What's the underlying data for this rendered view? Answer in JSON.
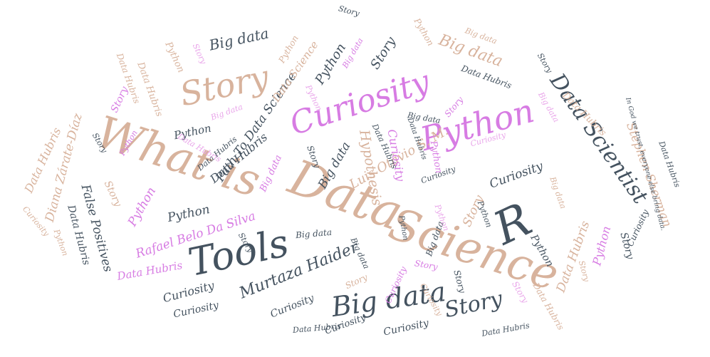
{
  "colors": {
    "tan": "#d8b39d",
    "slate": "#44525f",
    "violet": "#d77ce3",
    "pink": "#e9a6ea"
  },
  "words": [
    {
      "text": "What is",
      "color": "tan"
    },
    {
      "text": "Data",
      "color": "tan"
    },
    {
      "text": "Science",
      "color": "tan"
    },
    {
      "text": "Curiosity",
      "color": "violet"
    },
    {
      "text": "Python",
      "color": "violet"
    },
    {
      "text": "Story",
      "color": "tan"
    },
    {
      "text": "Tools",
      "color": "slate"
    },
    {
      "text": "R",
      "color": "slate"
    },
    {
      "text": "Data Scientist",
      "color": "slate"
    },
    {
      "text": "Big data",
      "color": "slate"
    },
    {
      "text": "Story",
      "color": "slate"
    },
    {
      "text": "Murtaza Haider",
      "color": "slate"
    },
    {
      "text": "Rafael Belo Da Silva",
      "color": "violet"
    },
    {
      "text": "Luis Otávio S. M.",
      "color": "tan"
    },
    {
      "text": "Stephen Sherman",
      "color": "tan"
    },
    {
      "text": "Diana Zárate-Díaz",
      "color": "tan"
    },
    {
      "text": "Path To Data Science",
      "color": "slate"
    },
    {
      "text": "Data Science",
      "color": "tan"
    },
    {
      "text": "Big data",
      "color": "slate"
    },
    {
      "text": "Big data",
      "color": "tan"
    },
    {
      "text": "Python",
      "color": "slate"
    },
    {
      "text": "Story",
      "color": "slate"
    },
    {
      "text": "Python",
      "color": "slate"
    },
    {
      "text": "Data Hubris",
      "color": "slate"
    },
    {
      "text": "Python",
      "color": "slate"
    },
    {
      "text": "Hypothesis",
      "color": "tan"
    },
    {
      "text": "Curiosity",
      "color": "violet"
    },
    {
      "text": "Big data",
      "color": "slate"
    },
    {
      "text": "Curiosity",
      "color": "slate"
    },
    {
      "text": "Story",
      "color": "tan"
    },
    {
      "text": "Python",
      "color": "violet"
    },
    {
      "text": "Python",
      "color": "slate"
    },
    {
      "text": "False Positives",
      "color": "slate"
    },
    {
      "text": "Data Hubris",
      "color": "slate"
    },
    {
      "text": "Data Hubris",
      "color": "violet"
    },
    {
      "text": "Curiosity",
      "color": "slate"
    },
    {
      "text": "Curiosity",
      "color": "slate"
    },
    {
      "text": "Curiosity",
      "color": "slate"
    },
    {
      "text": "Curiosity",
      "color": "slate"
    },
    {
      "text": "Data Hubris",
      "color": "tan"
    },
    {
      "text": "Data Hubris",
      "color": "tan"
    },
    {
      "text": "Python",
      "color": "violet"
    },
    {
      "text": "Story",
      "color": "slate"
    },
    {
      "text": "Story",
      "color": "slate"
    },
    {
      "text": "Data Hubris",
      "color": "slate"
    },
    {
      "text": "Big data",
      "color": "slate"
    },
    {
      "text": "Story",
      "color": "violet"
    },
    {
      "text": "Story",
      "color": "violet"
    },
    {
      "text": "Story",
      "color": "tan"
    },
    {
      "text": "Big data",
      "color": "violet"
    },
    {
      "text": "Python",
      "color": "tan"
    },
    {
      "text": "Big data",
      "color": "violet"
    },
    {
      "text": "Data Hubris",
      "color": "tan"
    },
    {
      "text": "Data Hubris",
      "color": "tan"
    },
    {
      "text": "Python",
      "color": "tan"
    },
    {
      "text": "Curiosity",
      "color": "violet"
    },
    {
      "text": "Big data",
      "color": "slate"
    },
    {
      "text": "Story",
      "color": "slate"
    },
    {
      "text": "Python",
      "color": "violet"
    },
    {
      "text": "Story",
      "color": "slate"
    },
    {
      "text": "Curiosity",
      "color": "slate"
    },
    {
      "text": "Story",
      "color": "violet"
    },
    {
      "text": "Data Hubris",
      "color": "slate"
    },
    {
      "text": "Data Hubris",
      "color": "slate"
    },
    {
      "text": "Data Hubris",
      "color": "tan"
    },
    {
      "text": "Big data",
      "color": "tan"
    },
    {
      "text": "Python",
      "color": "tan"
    },
    {
      "text": "Story",
      "color": "pink"
    },
    {
      "text": "Python",
      "color": "pink"
    },
    {
      "text": "Big data",
      "color": "pink"
    },
    {
      "text": "Data Hubris",
      "color": "pink"
    },
    {
      "text": "Story",
      "color": "slate"
    },
    {
      "text": "Data Hubris",
      "color": "slate"
    },
    {
      "text": "Data Hubris",
      "color": "slate"
    },
    {
      "text": "Curiosity",
      "color": "slate"
    },
    {
      "text": "Python",
      "color": "tan"
    },
    {
      "text": "Curiosity",
      "color": "tan"
    },
    {
      "text": "Story",
      "color": "slate"
    },
    {
      "text": "Data Hubris",
      "color": "slate"
    },
    {
      "text": "In God we trust, everyone else bring data.",
      "color": "slate"
    },
    {
      "text": "Big data",
      "color": "pink"
    },
    {
      "text": "Story",
      "color": "pink"
    },
    {
      "text": "Python",
      "color": "pink"
    },
    {
      "text": "Curiosity",
      "color": "pink"
    },
    {
      "text": "Story",
      "color": "tan"
    },
    {
      "text": "Big data",
      "color": "tan"
    },
    {
      "text": "Python",
      "color": "slate"
    },
    {
      "text": "Story",
      "color": "tan"
    },
    {
      "text": "Big data",
      "color": "slate"
    },
    {
      "text": "Python",
      "color": "slate"
    },
    {
      "text": "Data Hubris",
      "color": "slate"
    },
    {
      "text": "Big data",
      "color": "slate"
    },
    {
      "text": "Story",
      "color": "slate"
    },
    {
      "text": "Curiosity",
      "color": "tan"
    },
    {
      "text": "Python",
      "color": "violet"
    },
    {
      "text": "Data Hubris",
      "color": "tan"
    },
    {
      "text": "Curiosity",
      "color": "slate"
    }
  ]
}
